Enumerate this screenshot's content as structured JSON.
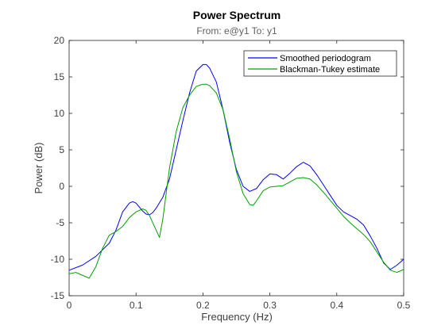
{
  "chart_data": {
    "type": "line",
    "title": "Power Spectrum",
    "subtitle": "From: e@y1  To: y1",
    "xlabel": "Frequency  (Hz)",
    "ylabel": "Power (dB)",
    "xlim": [
      0,
      0.5
    ],
    "ylim": [
      -15,
      20
    ],
    "xticks": [
      0,
      0.1,
      0.2,
      0.3,
      0.4,
      0.5
    ],
    "yticks": [
      -15,
      -10,
      -5,
      0,
      5,
      10,
      15,
      20
    ],
    "xtick_labels": [
      "0",
      "0.1",
      "0.2",
      "0.3",
      "0.4",
      "0.5"
    ],
    "ytick_labels": [
      "-15",
      "-10",
      "-5",
      "0",
      "5",
      "10",
      "15",
      "20"
    ],
    "grid": false,
    "legend_position": "top-right",
    "series": [
      {
        "name": "Smoothed periodogram",
        "color": "#0000ff",
        "x": [
          0,
          0.02,
          0.04,
          0.06,
          0.07,
          0.08,
          0.09,
          0.095,
          0.1,
          0.11,
          0.115,
          0.12,
          0.125,
          0.13,
          0.14,
          0.15,
          0.16,
          0.17,
          0.18,
          0.19,
          0.2,
          0.205,
          0.21,
          0.22,
          0.23,
          0.24,
          0.25,
          0.26,
          0.27,
          0.28,
          0.29,
          0.3,
          0.31,
          0.32,
          0.33,
          0.34,
          0.35,
          0.36,
          0.37,
          0.38,
          0.39,
          0.4,
          0.41,
          0.42,
          0.43,
          0.44,
          0.45,
          0.46,
          0.47,
          0.48,
          0.49,
          0.5
        ],
        "y": [
          -11.5,
          -10.8,
          -9.6,
          -7.8,
          -6.0,
          -3.5,
          -2.3,
          -2.1,
          -2.3,
          -3.4,
          -3.8,
          -3.9,
          -3.6,
          -3.0,
          -1.5,
          1.0,
          5.0,
          9.0,
          12.8,
          15.8,
          16.7,
          16.7,
          16.2,
          14.3,
          10.5,
          6.0,
          2.3,
          0.0,
          -0.7,
          -0.3,
          0.9,
          1.7,
          1.6,
          1.0,
          1.8,
          2.7,
          3.3,
          2.8,
          1.6,
          0.2,
          -1.2,
          -2.6,
          -3.5,
          -4.0,
          -4.5,
          -5.3,
          -6.8,
          -8.5,
          -10.5,
          -11.4,
          -10.8,
          -10.0
        ]
      },
      {
        "name": "Blackman-Tukey estimate",
        "color": "#00a000",
        "x": [
          0,
          0.01,
          0.02,
          0.03,
          0.04,
          0.05,
          0.06,
          0.07,
          0.08,
          0.09,
          0.1,
          0.11,
          0.115,
          0.12,
          0.13,
          0.135,
          0.14,
          0.15,
          0.16,
          0.17,
          0.18,
          0.19,
          0.2,
          0.205,
          0.21,
          0.22,
          0.23,
          0.24,
          0.25,
          0.26,
          0.27,
          0.275,
          0.28,
          0.29,
          0.3,
          0.31,
          0.32,
          0.33,
          0.34,
          0.35,
          0.36,
          0.37,
          0.38,
          0.39,
          0.4,
          0.41,
          0.42,
          0.43,
          0.44,
          0.45,
          0.46,
          0.47,
          0.48,
          0.49,
          0.5
        ],
        "y": [
          -12.0,
          -11.8,
          -12.2,
          -12.6,
          -11.0,
          -8.5,
          -6.7,
          -6.2,
          -5.5,
          -4.3,
          -3.5,
          -3.1,
          -3.3,
          -4.0,
          -6.0,
          -7.0,
          -4.5,
          2.5,
          7.5,
          10.8,
          12.5,
          13.7,
          14.0,
          14.0,
          13.8,
          12.8,
          10.5,
          6.5,
          2.0,
          -1.0,
          -2.5,
          -2.6,
          -2.0,
          -0.6,
          -0.1,
          0.0,
          0.1,
          0.6,
          1.1,
          1.2,
          1.0,
          0.2,
          -0.8,
          -1.9,
          -3.0,
          -4.1,
          -5.0,
          -5.8,
          -6.6,
          -7.6,
          -9.0,
          -10.4,
          -11.5,
          -11.8,
          -11.4
        ]
      }
    ]
  }
}
